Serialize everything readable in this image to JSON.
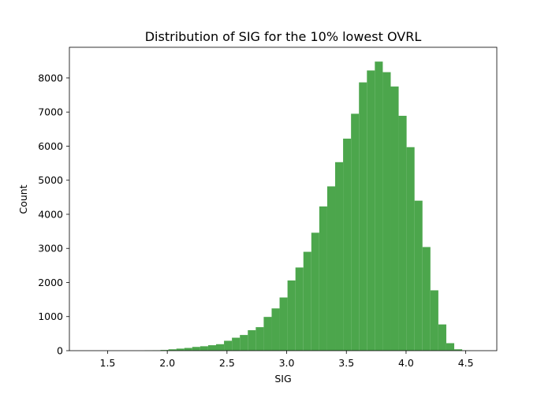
{
  "chart_data": {
    "type": "bar",
    "title": "Distribution of SIG for the 10% lowest OVRL",
    "xlabel": "SIG",
    "ylabel": "Count",
    "xlim": [
      1.18,
      4.76
    ],
    "ylim": [
      0,
      8900
    ],
    "xticks": [
      1.5,
      2.0,
      2.5,
      3.0,
      3.5,
      4.0,
      4.5
    ],
    "xtick_labels": [
      "1.5",
      "2.0",
      "2.5",
      "3.0",
      "3.5",
      "4.0",
      "4.5"
    ],
    "yticks": [
      0,
      1000,
      2000,
      3000,
      4000,
      5000,
      6000,
      7000,
      8000
    ],
    "ytick_labels": [
      "0",
      "1000",
      "2000",
      "3000",
      "4000",
      "5000",
      "6000",
      "7000",
      "8000"
    ],
    "bar_color": "#4ca64c",
    "bin_width": 0.0665,
    "bin_starts": [
      1.81,
      1.8765,
      1.943,
      2.0095,
      2.076,
      2.1425,
      2.209,
      2.2755,
      2.342,
      2.4085,
      2.475,
      2.5415,
      2.608,
      2.6745,
      2.741,
      2.8075,
      2.874,
      2.9405,
      3.007,
      3.0735,
      3.14,
      3.2065,
      3.273,
      3.3395,
      3.406,
      3.4725,
      3.539,
      3.6055,
      3.672,
      3.7385,
      3.805,
      3.8715,
      3.938,
      4.0045,
      4.071,
      4.1375,
      4.204,
      4.2705,
      4.337,
      4.4035,
      4.47
    ],
    "values": [
      5,
      10,
      20,
      40,
      60,
      80,
      110,
      130,
      160,
      190,
      290,
      380,
      460,
      600,
      690,
      990,
      1240,
      1560,
      2060,
      2440,
      2900,
      3460,
      4230,
      4820,
      5530,
      6220,
      6950,
      7870,
      8220,
      8480,
      8170,
      7750,
      6890,
      5970,
      4400,
      3040,
      1770,
      770,
      220,
      40,
      5
    ]
  }
}
